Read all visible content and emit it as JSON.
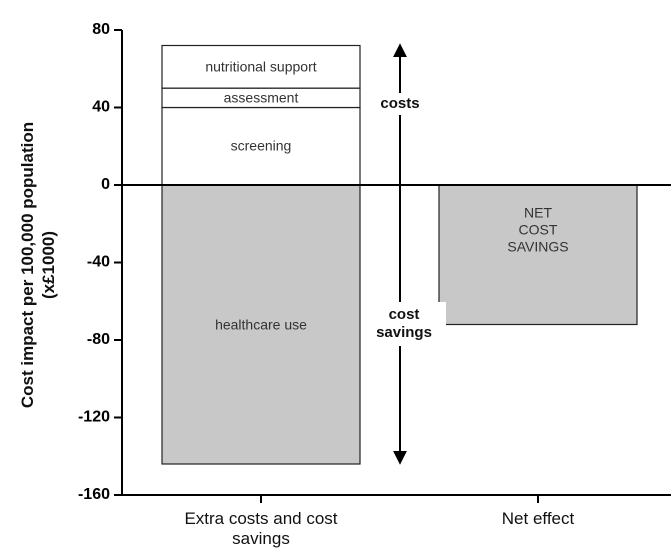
{
  "chart_data": {
    "type": "stacked_bar",
    "y_label": "Cost impact per 100,000 population (x£1000)",
    "categories": [
      "Extra costs and cost savings",
      "Net effect"
    ],
    "series": [
      {
        "name": "screening",
        "color": "#ffffff",
        "values": [
          40,
          null
        ]
      },
      {
        "name": "assessment",
        "color": "#ffffff",
        "values": [
          10,
          null
        ]
      },
      {
        "name": "nutritional support",
        "color": "#ffffff",
        "values": [
          22,
          null
        ]
      },
      {
        "name": "healthcare use",
        "color": "#c8c8c8",
        "values": [
          -144,
          null
        ]
      },
      {
        "name": "NET COST SAVINGS",
        "color": "#c8c8c8",
        "values": [
          null,
          -72
        ]
      }
    ],
    "annotations": [
      "costs",
      "cost savings"
    ],
    "ylim": [
      -160,
      80
    ],
    "yticks": [
      -160,
      -120,
      -80,
      -40,
      0,
      40,
      80
    ]
  }
}
